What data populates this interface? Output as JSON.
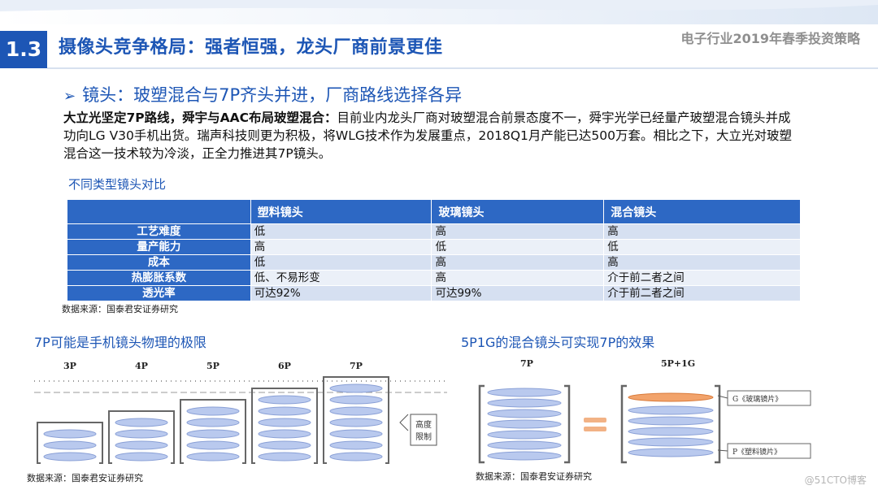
{
  "header": {
    "section_number": "1.3",
    "title": "摄像头竞争格局：强者恒强，龙头厂商前景更佳",
    "report_title": "电子行业2019年春季投资策略"
  },
  "bullet": {
    "arrow": "➢",
    "text": "镜头：玻塑混合与7P齐头并进，厂商路线选择各异"
  },
  "paragraph": {
    "lead": "大立光坚定7P路线，舜宇与AAC布局玻塑混合：",
    "body": "目前业内龙头厂商对玻塑混合前景态度不一，舜宇光学已经量产玻塑混合镜头并成功向LG V30手机出货。瑞声科技则更为积极，将WLG技术作为发展重点，2018Q1月产能已达500万套。相比之下，大立光对玻塑混合这一技术较为冷淡，正全力推进其7P镜头。"
  },
  "table": {
    "caption": "不同类型镜头对比",
    "columns": [
      "",
      "塑料镜头",
      "玻璃镜头",
      "混合镜头"
    ],
    "rows": [
      {
        "label": "工艺难度",
        "cells": [
          "低",
          "高",
          "高"
        ]
      },
      {
        "label": "量产能力",
        "cells": [
          "高",
          "低",
          "低"
        ]
      },
      {
        "label": "成本",
        "cells": [
          "低",
          "高",
          "高"
        ]
      },
      {
        "label": "热膨胀系数",
        "cells": [
          "低、不易形变",
          "高",
          "介于前二者之间"
        ]
      },
      {
        "label": "透光率",
        "cells": [
          "可达92%",
          "可达99%",
          "介于前二者之间"
        ]
      }
    ],
    "source": "数据来源：国泰君安证券研究"
  },
  "figure_left": {
    "caption": "7P可能是手机镜头物理的极限",
    "stacks": [
      {
        "label": "3P",
        "lenses": 3
      },
      {
        "label": "4P",
        "lenses": 4
      },
      {
        "label": "5P",
        "lenses": 5
      },
      {
        "label": "6P",
        "lenses": 6
      },
      {
        "label": "7P",
        "lenses": 7
      }
    ],
    "side_note": [
      "高度",
      "限制"
    ],
    "source": "数据来源：国泰君安证券研究"
  },
  "figure_right": {
    "caption": "5P1G的混合镜头可实现7P的效果",
    "left_label": "7P",
    "right_label": "5P+1G",
    "glass_note": "G《玻璃镜片》",
    "plastic_note": "P《塑料镜片》",
    "source": "数据来源：国泰君安证券研究"
  },
  "watermark": "@51CTO博客",
  "colors": {
    "brand_blue": "#1d56b5",
    "table_header": "#2d68c4",
    "row_dark": "#d6e0f1",
    "row_light": "#ebf0f8",
    "lens_fill": "#b9c9ee",
    "glass_lens": "#f2a36b"
  }
}
